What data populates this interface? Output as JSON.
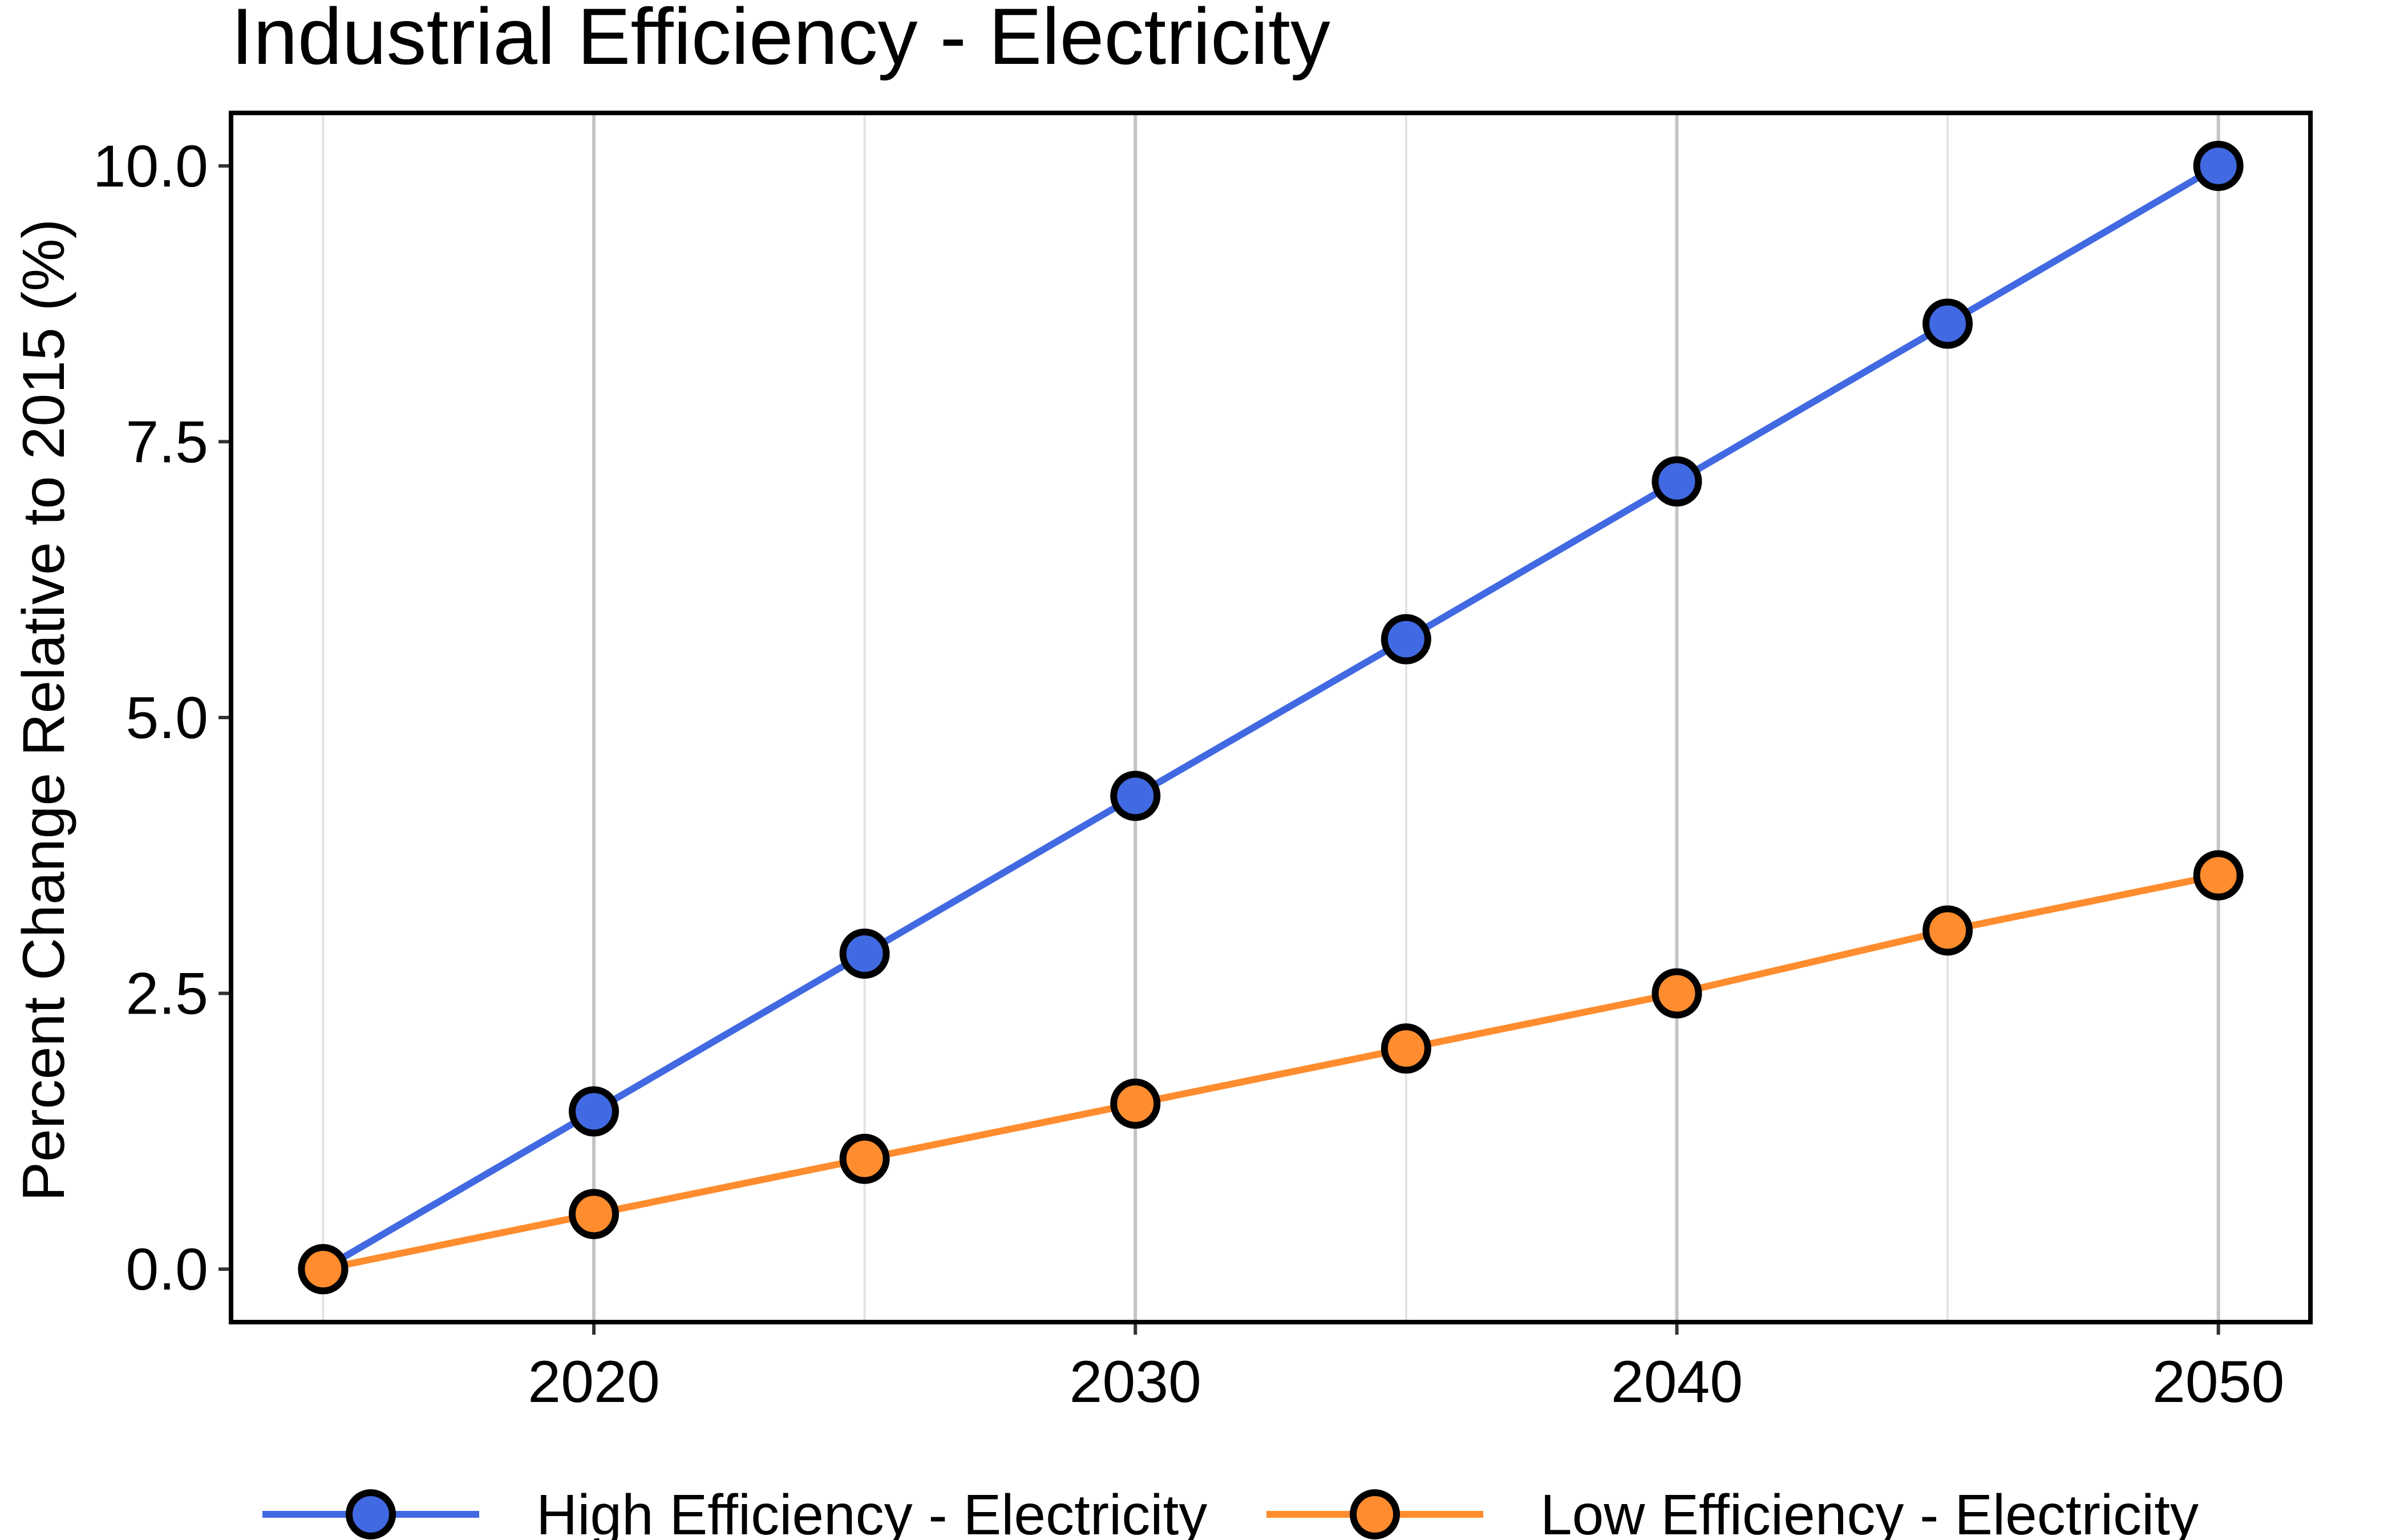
{
  "chart_data": {
    "type": "line",
    "title": "Industrial Efficiency - Electricity",
    "xlabel": "",
    "ylabel": "Percent Change Relative to 2015 (%)",
    "x": [
      2015,
      2020,
      2025,
      2030,
      2035,
      2040,
      2045,
      2050
    ],
    "xlim": [
      2013.3,
      2051.7
    ],
    "ylim": [
      -0.48,
      10.48
    ],
    "x_ticks": [
      2020,
      2030,
      2040,
      2050
    ],
    "x_tick_labels": [
      "2020",
      "2030",
      "2040",
      "2050"
    ],
    "x_minor_gridlines": [
      2015,
      2025,
      2035,
      2045
    ],
    "y_ticks": [
      0,
      2.5,
      5,
      7.5,
      10
    ],
    "y_tick_labels": [
      "0.0",
      "2.5",
      "5.0",
      "7.5",
      "10.0"
    ],
    "grid": "vertical only",
    "legend_position": "bottom",
    "series": [
      {
        "name": "High Efficiency - Electricity",
        "color": "#4169E1",
        "values": [
          0,
          1.43,
          2.86,
          4.29,
          5.71,
          7.14,
          8.57,
          10.0
        ]
      },
      {
        "name": "Low Efficiency - Electricity",
        "color": "#FF8C2E",
        "values": [
          0,
          0.5,
          1.0,
          1.5,
          2.0,
          2.5,
          3.07,
          3.57
        ]
      }
    ]
  }
}
